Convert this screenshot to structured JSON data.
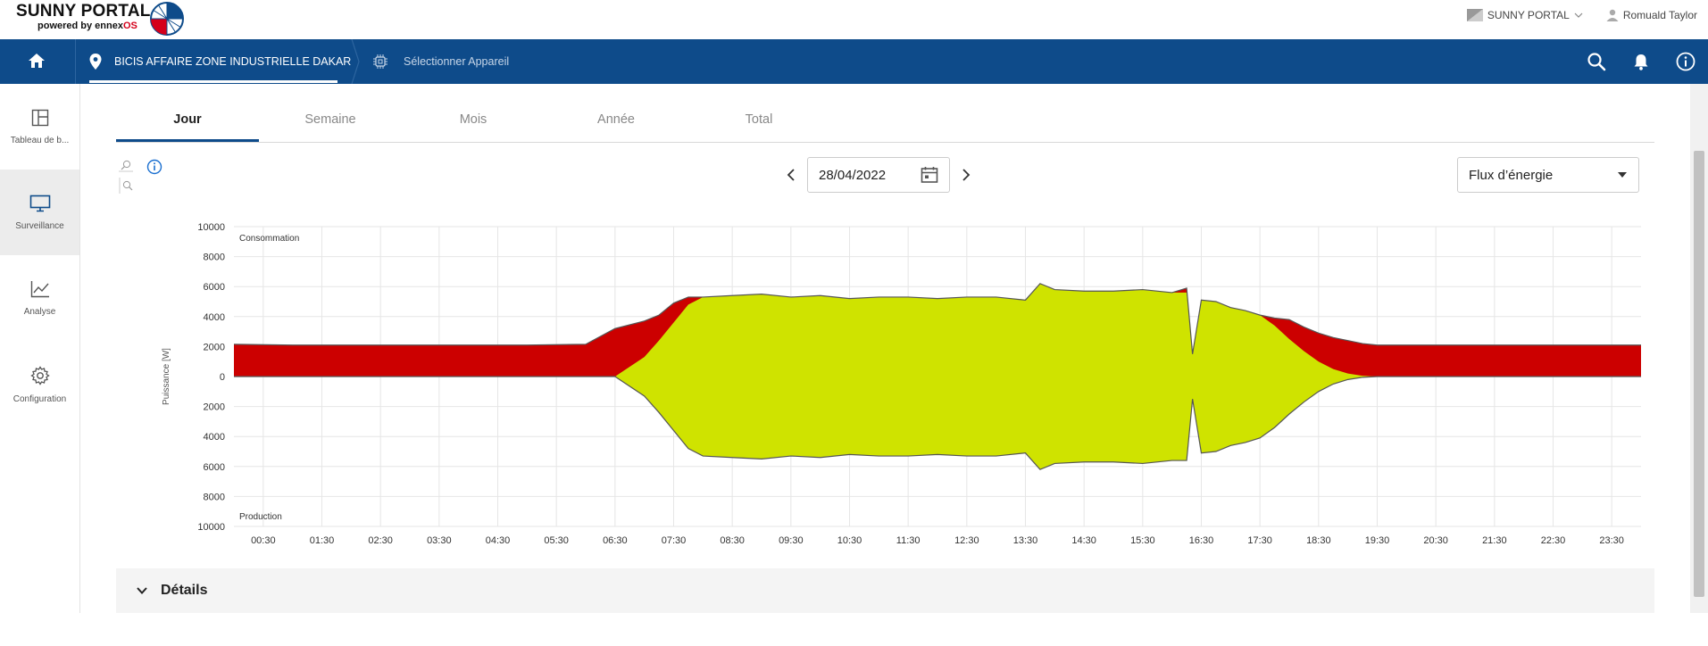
{
  "header": {
    "logo_title": "SUNNY PORTAL",
    "logo_sub_prefix": "powered by ennex",
    "logo_sub_suffix": "OS",
    "portal_switch": "SUNNY PORTAL",
    "user_name": "Romuald Taylor"
  },
  "nav": {
    "location": "BICIS AFFAIRE ZONE INDUSTRIELLE DAKAR",
    "device": "Sélectionner Appareil"
  },
  "sidebar": {
    "items": [
      {
        "label": "Tableau de b...",
        "icon": "dashboard-icon"
      },
      {
        "label": "Surveillance",
        "icon": "monitor-icon"
      },
      {
        "label": "Analyse",
        "icon": "chart-icon"
      },
      {
        "label": "Configuration",
        "icon": "gear-icon"
      }
    ],
    "active_index": 1
  },
  "tabs": [
    "Jour",
    "Semaine",
    "Mois",
    "Année",
    "Total"
  ],
  "active_tab": 0,
  "date": {
    "value": "28/04/2022"
  },
  "view_select": {
    "value": "Flux d’énergie"
  },
  "details": {
    "label": "Détails"
  },
  "colors": {
    "brand": "#0e4b8a",
    "consumption": "#cc0000",
    "production": "#cfe300",
    "outline": "#555555"
  },
  "chart_data": {
    "type": "area",
    "ylabel": "Puissance [W]",
    "top_label": "Consommation",
    "bottom_label": "Production",
    "y_ticks": [
      10000,
      8000,
      6000,
      4000,
      2000,
      0,
      2000,
      4000,
      6000,
      8000,
      10000
    ],
    "ylim": [
      -10000,
      10000
    ],
    "x_ticks": [
      "00:30",
      "01:30",
      "02:30",
      "03:30",
      "04:30",
      "05:30",
      "06:30",
      "07:30",
      "08:30",
      "09:30",
      "10:30",
      "11:30",
      "12:30",
      "13:30",
      "14:30",
      "15:30",
      "16:30",
      "17:30",
      "18:30",
      "19:30",
      "20:30",
      "21:30",
      "22:30",
      "23:30"
    ],
    "x_hours": [
      0,
      1,
      2,
      3,
      4,
      5,
      6,
      6.5,
      7,
      7.25,
      7.5,
      7.75,
      8,
      8.5,
      9,
      9.5,
      10,
      10.5,
      11,
      11.5,
      12,
      12.5,
      13,
      13.5,
      13.75,
      14,
      14.5,
      15,
      15.5,
      16,
      16.25,
      16.35,
      16.5,
      16.75,
      17,
      17.25,
      17.5,
      17.75,
      18,
      18.25,
      18.5,
      18.75,
      19,
      19.25,
      19.5,
      20,
      21,
      22,
      23,
      24
    ],
    "series": [
      {
        "name": "Consommation",
        "values": [
          2150,
          2100,
          2100,
          2100,
          2100,
          2100,
          2150,
          3200,
          3700,
          4100,
          4900,
          5300,
          5300,
          5400,
          5500,
          5300,
          5400,
          5200,
          5300,
          5300,
          5200,
          5300,
          5300,
          5100,
          6200,
          5800,
          5700,
          5700,
          5800,
          5600,
          5900,
          1500,
          5100,
          5000,
          4600,
          4400,
          4100,
          3900,
          3800,
          3300,
          2900,
          2600,
          2400,
          2200,
          2100,
          2100,
          2100,
          2100,
          2100,
          2100
        ]
      },
      {
        "name": "Production",
        "values": [
          0,
          0,
          0,
          0,
          0,
          0,
          0,
          0,
          1300,
          2400,
          3600,
          4800,
          5300,
          5400,
          5500,
          5300,
          5400,
          5200,
          5300,
          5300,
          5200,
          5300,
          5300,
          5100,
          6200,
          5800,
          5700,
          5700,
          5800,
          5600,
          5600,
          1500,
          5100,
          5000,
          4600,
          4400,
          4100,
          3400,
          2500,
          1700,
          1000,
          500,
          200,
          50,
          0,
          0,
          0,
          0,
          0,
          0
        ]
      }
    ]
  }
}
